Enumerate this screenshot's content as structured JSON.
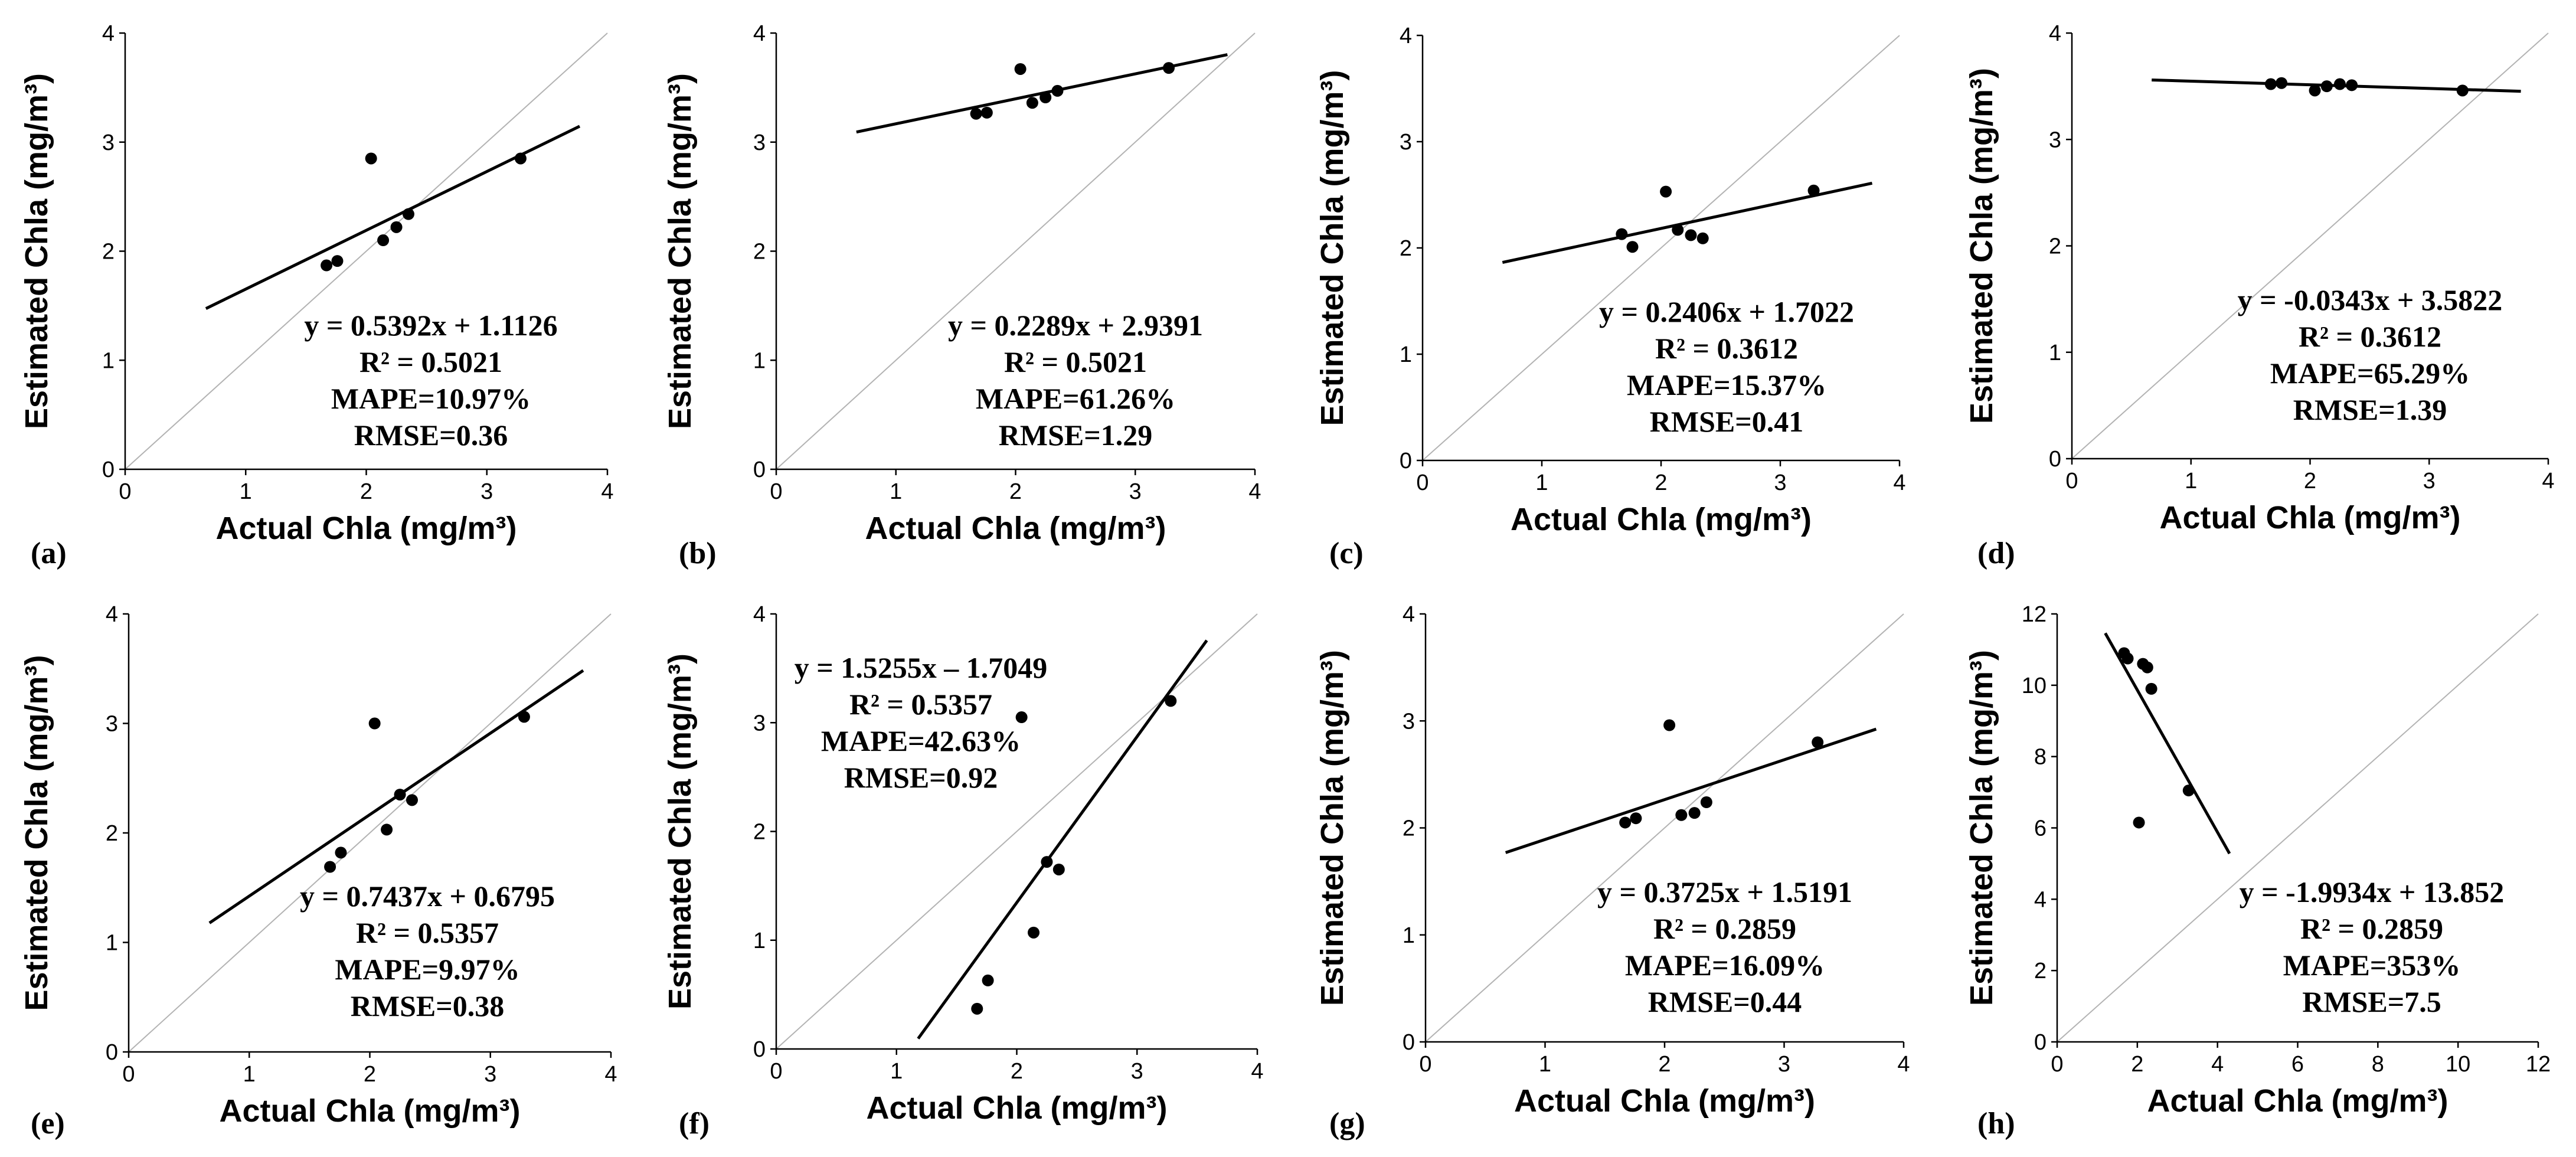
{
  "figure": {
    "background": "#ffffff",
    "point_color": "#000000",
    "fit_color": "#000000",
    "identity_color": "#b3b3b3"
  },
  "chart_data": [
    {
      "label": "(a)",
      "type": "scatter",
      "xlabel": "Actual Chla (mg/m³)",
      "ylabel": "Estimated Chla (mg/m³)",
      "xlim": [
        0,
        4
      ],
      "ylim": [
        0,
        4
      ],
      "xticks": [
        0,
        1,
        2,
        3,
        4
      ],
      "yticks": [
        0,
        1,
        2,
        3,
        4
      ],
      "points": [
        [
          1.67,
          1.87
        ],
        [
          1.76,
          1.91
        ],
        [
          2.04,
          2.85
        ],
        [
          2.14,
          2.1
        ],
        [
          2.25,
          2.22
        ],
        [
          2.35,
          2.34
        ],
        [
          3.28,
          2.85
        ]
      ],
      "fit": {
        "slope": 0.5392,
        "intercept": 1.1126,
        "x_range": [
          0.67,
          3.77
        ]
      },
      "annotation": [
        "y = 0.5392x + 1.1126",
        "R² = 0.5021",
        "MAPE=10.97%",
        "RMSE=0.36"
      ]
    },
    {
      "label": "(b)",
      "type": "scatter",
      "xlabel": "Actual Chla (mg/m³)",
      "ylabel": "Estimated Chla (mg/m³)",
      "xlim": [
        0,
        4
      ],
      "ylim": [
        0,
        4
      ],
      "xticks": [
        0,
        1,
        2,
        3,
        4
      ],
      "yticks": [
        0,
        1,
        2,
        3,
        4
      ],
      "points": [
        [
          1.67,
          3.26
        ],
        [
          1.76,
          3.27
        ],
        [
          2.04,
          3.67
        ],
        [
          2.14,
          3.36
        ],
        [
          2.25,
          3.41
        ],
        [
          2.35,
          3.47
        ],
        [
          3.28,
          3.68
        ]
      ],
      "fit": {
        "slope": 0.2289,
        "intercept": 2.9391,
        "x_range": [
          0.67,
          3.77
        ]
      },
      "annotation": [
        "y = 0.2289x + 2.9391",
        "R² = 0.5021",
        "MAPE=61.26%",
        "RMSE=1.29"
      ]
    },
    {
      "label": "(c)",
      "type": "scatter",
      "xlabel": "Actual Chla (mg/m³)",
      "ylabel": "Estimated Chla (mg/m³)",
      "xlim": [
        0,
        4
      ],
      "ylim": [
        0,
        4
      ],
      "xticks": [
        0,
        1,
        2,
        3,
        4
      ],
      "yticks": [
        0,
        1,
        2,
        3,
        4
      ],
      "points": [
        [
          1.67,
          2.13
        ],
        [
          1.76,
          2.01
        ],
        [
          2.04,
          2.53
        ],
        [
          2.14,
          2.17
        ],
        [
          2.25,
          2.12
        ],
        [
          2.35,
          2.09
        ],
        [
          3.28,
          2.54
        ]
      ],
      "fit": {
        "slope": 0.2406,
        "intercept": 1.7022,
        "x_range": [
          0.67,
          3.77
        ]
      },
      "annotation": [
        "y = 0.2406x + 1.7022",
        "R² = 0.3612",
        "MAPE=15.37%",
        "RMSE=0.41"
      ]
    },
    {
      "label": "(d)",
      "type": "scatter",
      "xlabel": "Actual Chla (mg/m³)",
      "ylabel": "Estimated Chla (mg/m³)",
      "xlim": [
        0,
        4
      ],
      "ylim": [
        0,
        4
      ],
      "xticks": [
        0,
        1,
        2,
        3,
        4
      ],
      "yticks": [
        0,
        1,
        2,
        3,
        4
      ],
      "points": [
        [
          1.67,
          3.52
        ],
        [
          1.76,
          3.53
        ],
        [
          2.04,
          3.46
        ],
        [
          2.14,
          3.5
        ],
        [
          2.25,
          3.52
        ],
        [
          2.35,
          3.51
        ],
        [
          3.28,
          3.46
        ]
      ],
      "fit": {
        "slope": -0.0343,
        "intercept": 3.5822,
        "x_range": [
          0.67,
          3.77
        ]
      },
      "annotation": [
        "y = -0.0343x + 3.5822",
        "R² = 0.3612",
        "MAPE=65.29%",
        "RMSE=1.39"
      ]
    },
    {
      "label": "(e)",
      "type": "scatter",
      "xlabel": "Actual Chla (mg/m³)",
      "ylabel": "Estimated Chla (mg/m³)",
      "xlim": [
        0,
        4
      ],
      "ylim": [
        0,
        4
      ],
      "xticks": [
        0,
        1,
        2,
        3,
        4
      ],
      "yticks": [
        0,
        1,
        2,
        3,
        4
      ],
      "points": [
        [
          1.67,
          1.69
        ],
        [
          1.76,
          1.82
        ],
        [
          2.04,
          3.0
        ],
        [
          2.14,
          2.03
        ],
        [
          2.25,
          2.35
        ],
        [
          2.35,
          2.3
        ],
        [
          3.28,
          3.06
        ]
      ],
      "fit": {
        "slope": 0.7437,
        "intercept": 0.6795,
        "x_range": [
          0.67,
          3.77
        ]
      },
      "annotation": [
        "y = 0.7437x + 0.6795",
        "R² = 0.5357",
        "MAPE=9.97%",
        "RMSE=0.38"
      ]
    },
    {
      "label": "(f)",
      "type": "scatter",
      "xlabel": "Actual Chla (mg/m³)",
      "ylabel": "Estimated Chla (mg/m³)",
      "xlim": [
        0,
        4
      ],
      "ylim": [
        0,
        4
      ],
      "xticks": [
        0,
        1,
        2,
        3,
        4
      ],
      "yticks": [
        0,
        1,
        2,
        3,
        4
      ],
      "points": [
        [
          1.67,
          0.37
        ],
        [
          1.76,
          0.63
        ],
        [
          2.04,
          3.05
        ],
        [
          2.14,
          1.07
        ],
        [
          2.25,
          1.72
        ],
        [
          2.35,
          1.65
        ],
        [
          3.28,
          3.2
        ]
      ],
      "fit": {
        "slope": 1.5255,
        "intercept": -1.7049,
        "x_range": [
          1.18,
          3.58
        ]
      },
      "annotation": [
        "y = 1.5255x – 1.7049",
        "R² = 0.5357",
        "MAPE=42.63%",
        "RMSE=0.92"
      ]
    },
    {
      "label": "(g)",
      "type": "scatter",
      "xlabel": "Actual Chla (mg/m³)",
      "ylabel": "Estimated Chla (mg/m³)",
      "xlim": [
        0,
        4
      ],
      "ylim": [
        0,
        4
      ],
      "xticks": [
        0,
        1,
        2,
        3,
        4
      ],
      "yticks": [
        0,
        1,
        2,
        3,
        4
      ],
      "points": [
        [
          1.67,
          2.05
        ],
        [
          1.76,
          2.09
        ],
        [
          2.04,
          2.96
        ],
        [
          2.14,
          2.12
        ],
        [
          2.25,
          2.14
        ],
        [
          2.35,
          2.24
        ],
        [
          3.28,
          2.8
        ]
      ],
      "fit": {
        "slope": 0.3725,
        "intercept": 1.5191,
        "x_range": [
          0.67,
          3.77
        ]
      },
      "annotation": [
        "y = 0.3725x + 1.5191",
        "R² = 0.2859",
        "MAPE=16.09%",
        "RMSE=0.44"
      ]
    },
    {
      "label": "(h)",
      "type": "scatter",
      "xlabel": "Actual Chla (mg/m³)",
      "ylabel": "Estimated Chla (mg/m³)",
      "xlim": [
        0,
        12
      ],
      "ylim": [
        0,
        12
      ],
      "xticks": [
        0,
        2,
        4,
        6,
        8,
        10,
        12
      ],
      "yticks": [
        0,
        2,
        4,
        6,
        8,
        10,
        12
      ],
      "points": [
        [
          1.67,
          10.9
        ],
        [
          1.76,
          10.75
        ],
        [
          2.04,
          6.15
        ],
        [
          2.14,
          10.6
        ],
        [
          2.25,
          10.5
        ],
        [
          2.35,
          9.9
        ],
        [
          3.28,
          7.05
        ]
      ],
      "fit": {
        "slope": -1.9934,
        "intercept": 13.852,
        "x_range": [
          1.2,
          4.3
        ]
      },
      "annotation": [
        "y = -1.9934x + 13.852",
        "R² = 0.2859",
        "MAPE=353%",
        "RMSE=7.5"
      ]
    }
  ]
}
